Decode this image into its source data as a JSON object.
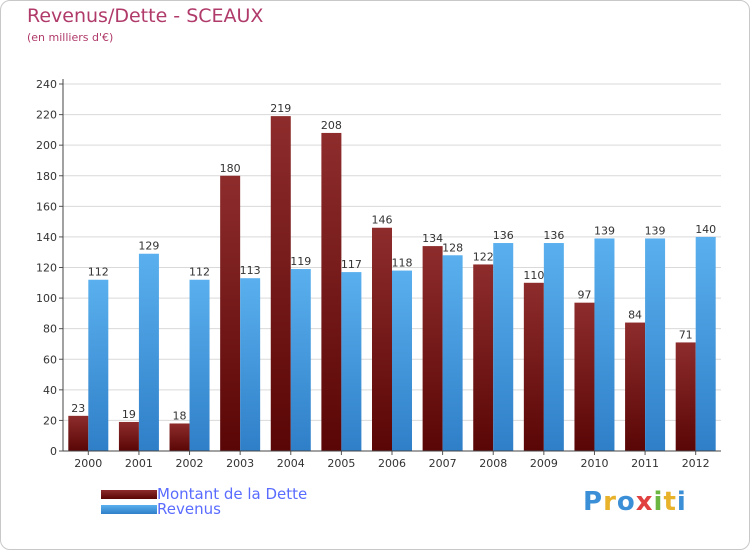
{
  "chart_data": {
    "type": "bar",
    "title": "Revenus/Dette - SCEAUX",
    "subtitle": "(en milliers d'€)",
    "categories": [
      "2000",
      "2001",
      "2002",
      "2003",
      "2004",
      "2005",
      "2006",
      "2007",
      "2008",
      "2009",
      "2010",
      "2011",
      "2012"
    ],
    "series": [
      {
        "name": "Montant de la Dette",
        "color": "#7a1a1a",
        "values": [
          23,
          19,
          18,
          180,
          219,
          208,
          146,
          134,
          122,
          110,
          97,
          84,
          71
        ]
      },
      {
        "name": "Revenus",
        "color": "#4ea6ea",
        "values": [
          112,
          129,
          112,
          113,
          119,
          117,
          118,
          128,
          136,
          136,
          139,
          139,
          140
        ]
      }
    ],
    "ylim": [
      0,
      240
    ],
    "yticks": [
      0,
      20,
      40,
      60,
      80,
      100,
      120,
      140,
      160,
      180,
      200,
      220,
      240
    ],
    "grid": true,
    "legend_position": "bottom-left"
  },
  "logo": {
    "text": "Proxiti",
    "letters": [
      {
        "ch": "P",
        "color": "#3b8fd6"
      },
      {
        "ch": "r",
        "color": "#e8b22a"
      },
      {
        "ch": "o",
        "color": "#3b8fd6"
      },
      {
        "ch": "x",
        "color": "#e04040"
      },
      {
        "ch": "i",
        "color": "#6ab640"
      },
      {
        "ch": "t",
        "color": "#e8b22a"
      },
      {
        "ch": "i",
        "color": "#3b8fd6"
      }
    ]
  }
}
